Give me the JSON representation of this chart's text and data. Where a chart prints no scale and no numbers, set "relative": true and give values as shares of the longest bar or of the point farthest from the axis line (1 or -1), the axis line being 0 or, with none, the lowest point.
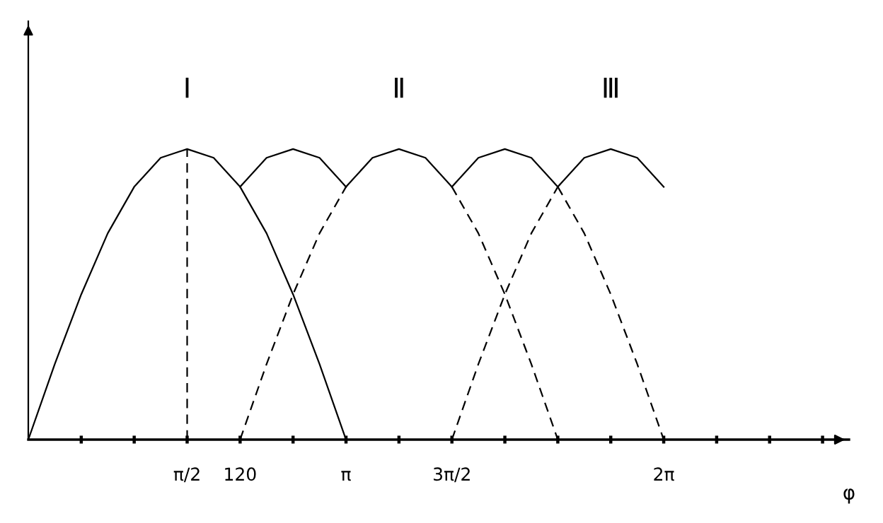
{
  "chart_data": {
    "type": "line",
    "relative": true,
    "xlabel": "φ",
    "grid": false,
    "legend": false,
    "marker": "none",
    "tick_labels": "x",
    "categories": [
      null,
      null,
      null,
      null,
      null,
      null,
      "π/2",
      null,
      "120",
      null,
      null,
      null,
      "π",
      null,
      null,
      null,
      "3π/2",
      null,
      null,
      null,
      null,
      null,
      null,
      null,
      "2π",
      null,
      null,
      null,
      null,
      null,
      null,
      null
    ],
    "annotations": [
      {
        "text": "Ⅰ",
        "x": "π/2",
        "y": 1
      },
      {
        "text": "Ⅱ",
        "y": 1
      },
      {
        "text": "Ⅲ",
        "y": 1
      }
    ],
    "ref_lines": [
      {
        "axis": "x",
        "value": "π/2",
        "line_style": "dashed",
        "color": "#000000"
      }
    ],
    "series": [
      {
        "color": "#000000",
        "line_style": "solid",
        "values": [
          0,
          0.26,
          0.5,
          0.71,
          0.87,
          0.97,
          1,
          0.97,
          0.87,
          0.71,
          0.5,
          0.26,
          0,
          null,
          null,
          null,
          null,
          null,
          null,
          null,
          null,
          null,
          null,
          null,
          null,
          null,
          null,
          null,
          null,
          null,
          null,
          null
        ]
      },
      {
        "color": "#000000",
        "line_style": "solid",
        "values": [
          null,
          null,
          null,
          null,
          null,
          null,
          null,
          null,
          0.87,
          0.97,
          1,
          0.97,
          0.87,
          null,
          null,
          null,
          null,
          null,
          null,
          null,
          null,
          null,
          null,
          null,
          null,
          null,
          null,
          null,
          null,
          null,
          null,
          null
        ]
      },
      {
        "color": "#000000",
        "line_style": "solid",
        "values": [
          null,
          null,
          null,
          null,
          null,
          null,
          null,
          null,
          null,
          null,
          null,
          null,
          0.87,
          0.97,
          1,
          0.97,
          0.87,
          null,
          null,
          null,
          null,
          null,
          null,
          null,
          null,
          null,
          null,
          null,
          null,
          null,
          null,
          null
        ]
      },
      {
        "color": "#000000",
        "line_style": "solid",
        "values": [
          null,
          null,
          null,
          null,
          null,
          null,
          null,
          null,
          null,
          null,
          null,
          null,
          null,
          null,
          null,
          null,
          0.87,
          0.97,
          1,
          0.97,
          0.87,
          null,
          null,
          null,
          null,
          null,
          null,
          null,
          null,
          null,
          null,
          null
        ]
      },
      {
        "color": "#000000",
        "line_style": "solid",
        "values": [
          null,
          null,
          null,
          null,
          null,
          null,
          null,
          null,
          null,
          null,
          null,
          null,
          null,
          null,
          null,
          null,
          null,
          null,
          null,
          null,
          0.87,
          0.97,
          1,
          0.97,
          0.87,
          null,
          null,
          null,
          null,
          null,
          null,
          null
        ]
      },
      {
        "color": "#000000",
        "line_style": "dashed",
        "values": [
          null,
          null,
          null,
          null,
          null,
          null,
          null,
          null,
          0,
          0.26,
          0.5,
          0.71,
          0.87,
          null,
          null,
          null,
          0.87,
          0.71,
          0.5,
          0.26,
          0,
          null,
          null,
          null,
          null,
          null,
          null,
          null,
          null,
          null,
          null,
          null
        ]
      },
      {
        "color": "#000000",
        "line_style": "dashed",
        "values": [
          null,
          null,
          null,
          null,
          null,
          null,
          null,
          null,
          null,
          null,
          null,
          null,
          null,
          null,
          null,
          null,
          0,
          0.26,
          0.5,
          0.71,
          0.87,
          null,
          null,
          null,
          null,
          null,
          null,
          null,
          null,
          null,
          null,
          null
        ]
      },
      {
        "color": "#000000",
        "line_style": "dashed",
        "values": [
          null,
          null,
          null,
          null,
          null,
          null,
          null,
          null,
          null,
          null,
          null,
          null,
          null,
          null,
          null,
          null,
          null,
          null,
          null,
          null,
          0.87,
          0.71,
          0.5,
          0.26,
          0,
          null,
          null,
          null,
          null,
          null,
          null,
          null
        ]
      }
    ]
  }
}
